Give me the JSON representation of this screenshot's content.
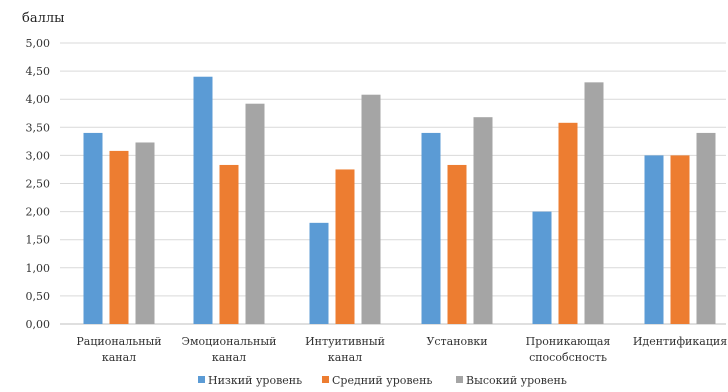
{
  "chart_data": {
    "type": "bar",
    "title": "",
    "ylabel": "баллы",
    "xlabel": "",
    "ylim": [
      0,
      5
    ],
    "yticks": [
      "0,00",
      "0,50",
      "1,00",
      "1,50",
      "2,00",
      "2,50",
      "3,00",
      "3,50",
      "4,00",
      "4,50",
      "5,00"
    ],
    "grid": true,
    "legend_position": "bottom",
    "categories": [
      [
        "Рациональный",
        "канал"
      ],
      [
        "Эмоциональный",
        "канал"
      ],
      [
        "Интуитивный",
        "канал"
      ],
      [
        "Установки"
      ],
      [
        "Проникающая",
        "способсность"
      ],
      [
        "Идентификация"
      ]
    ],
    "series": [
      {
        "name": "Низкий уровень",
        "color": "#5b9bd5",
        "values": [
          3.4,
          4.4,
          1.8,
          3.4,
          2.0,
          3.0
        ]
      },
      {
        "name": "Средний уровень",
        "color": "#ed7d31",
        "values": [
          3.08,
          2.83,
          2.75,
          2.83,
          3.58,
          3.0
        ]
      },
      {
        "name": "Высокий уровень",
        "color": "#a5a5a5",
        "values": [
          3.23,
          3.92,
          4.08,
          3.68,
          4.3,
          3.4
        ]
      }
    ]
  }
}
